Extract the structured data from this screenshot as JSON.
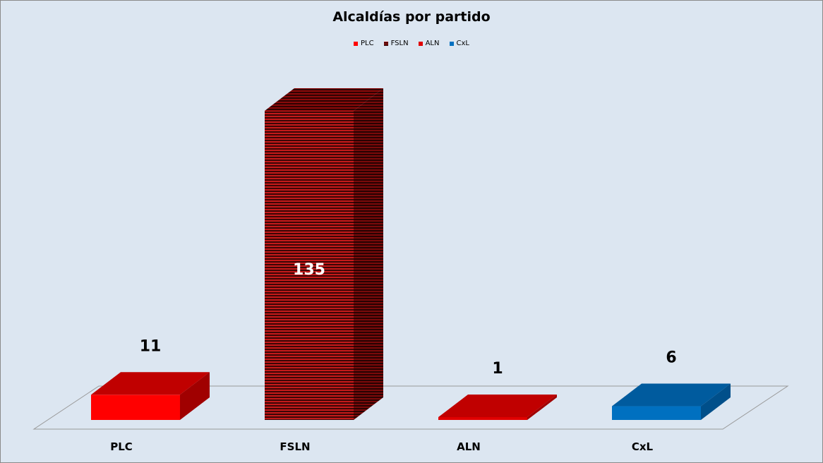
{
  "chart_data": {
    "type": "bar",
    "title": "Alcaldías por partido",
    "categories": [
      "PLC",
      "FSLN",
      "ALN",
      "CxL"
    ],
    "values": [
      11,
      135,
      1,
      6
    ],
    "series": [
      {
        "name": "PLC",
        "values": [
          11,
          null,
          null,
          null
        ]
      },
      {
        "name": "FSLN",
        "values": [
          null,
          135,
          null,
          null
        ]
      },
      {
        "name": "ALN",
        "values": [
          null,
          null,
          1,
          null
        ]
      },
      {
        "name": "CxL",
        "values": [
          null,
          null,
          null,
          6
        ]
      }
    ],
    "legend": [
      "PLC",
      "FSLN",
      "ALN",
      "CxL"
    ],
    "legend_position": "top",
    "colors": {
      "PLC": {
        "front": "#ff0000",
        "top": "#c00000",
        "side": "#a00000"
      },
      "FSLN": {
        "front": "#b01818",
        "top": "#7a0000",
        "side": "#6a0a0a",
        "pattern": "striped-black"
      },
      "ALN": {
        "front": "#e00000",
        "top": "#c00000",
        "side": "#a00000"
      },
      "CxL": {
        "front": "#0070c0",
        "top": "#005b9e",
        "side": "#004f8a"
      }
    },
    "label_colors": [
      "#000000",
      "#ffffff",
      "#000000",
      "#000000"
    ],
    "three_d": true,
    "grid": false,
    "xlabel": "",
    "ylabel": "",
    "ylim": [
      0,
      135
    ]
  }
}
